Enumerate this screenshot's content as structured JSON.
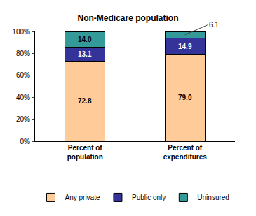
{
  "chart_data": {
    "type": "bar",
    "title": "Non-Medicare population",
    "categories": [
      "Percent of population",
      "Percent of expenditures"
    ],
    "series": [
      {
        "name": "Any private",
        "color": "#FFCC99",
        "values": [
          72.8,
          79.0
        ],
        "value_labels": [
          "72.8",
          "79.0"
        ]
      },
      {
        "name": "Public only",
        "color": "#333399",
        "values": [
          13.1,
          14.9
        ],
        "value_labels": [
          "13.1",
          "14.9"
        ]
      },
      {
        "name": "Uninsured",
        "color": "#339999",
        "values": [
          14.0,
          6.1
        ],
        "value_labels": [
          "14.0",
          "6.1"
        ]
      }
    ],
    "ylim": [
      0,
      100
    ],
    "yticks": [
      {
        "value": 0,
        "label": "0%"
      },
      {
        "value": 20,
        "label": "20%"
      },
      {
        "value": 40,
        "label": "40%"
      },
      {
        "value": 60,
        "label": "60%"
      },
      {
        "value": 80,
        "label": "80%"
      },
      {
        "value": 100,
        "label": "100%"
      }
    ],
    "stacked": true,
    "data_labels": true,
    "grid": false,
    "legend": "bottom"
  }
}
